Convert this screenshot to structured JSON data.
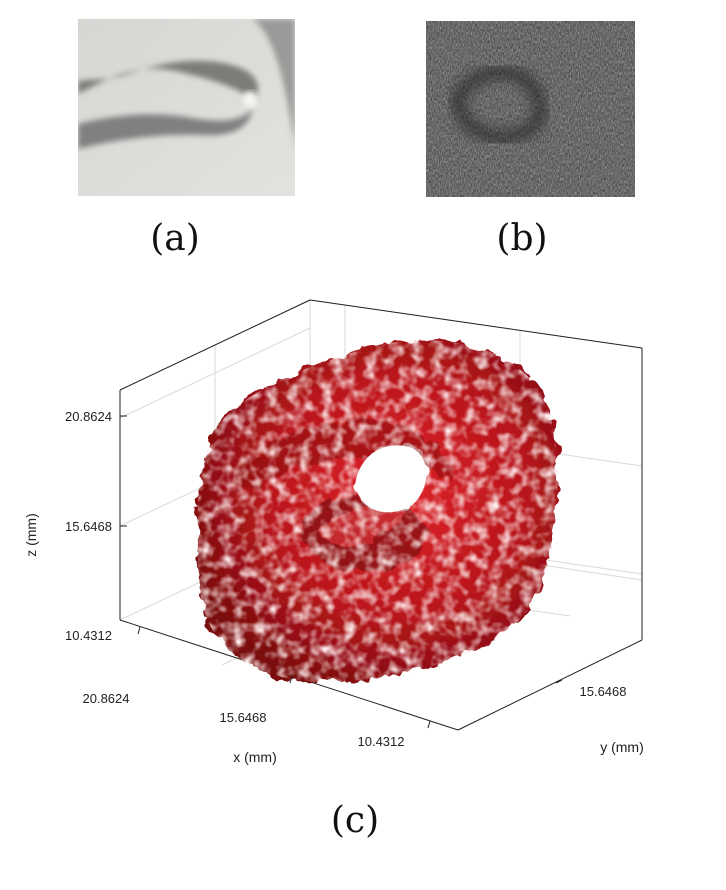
{
  "panels": {
    "a": {
      "caption": "(a)"
    },
    "b": {
      "caption": "(b)"
    },
    "c": {
      "caption": "(c)"
    }
  },
  "plot3d": {
    "surface_color": "#c8141a",
    "xlabel": "x (mm)",
    "ylabel": "y (mm)",
    "zlabel": "z (mm)",
    "x_ticks": [
      "20.8624",
      "15.6468",
      "10.4312"
    ],
    "y_ticks": [
      "15.6468"
    ],
    "z_ticks": [
      "20.8624",
      "15.6468",
      "10.4312"
    ]
  }
}
